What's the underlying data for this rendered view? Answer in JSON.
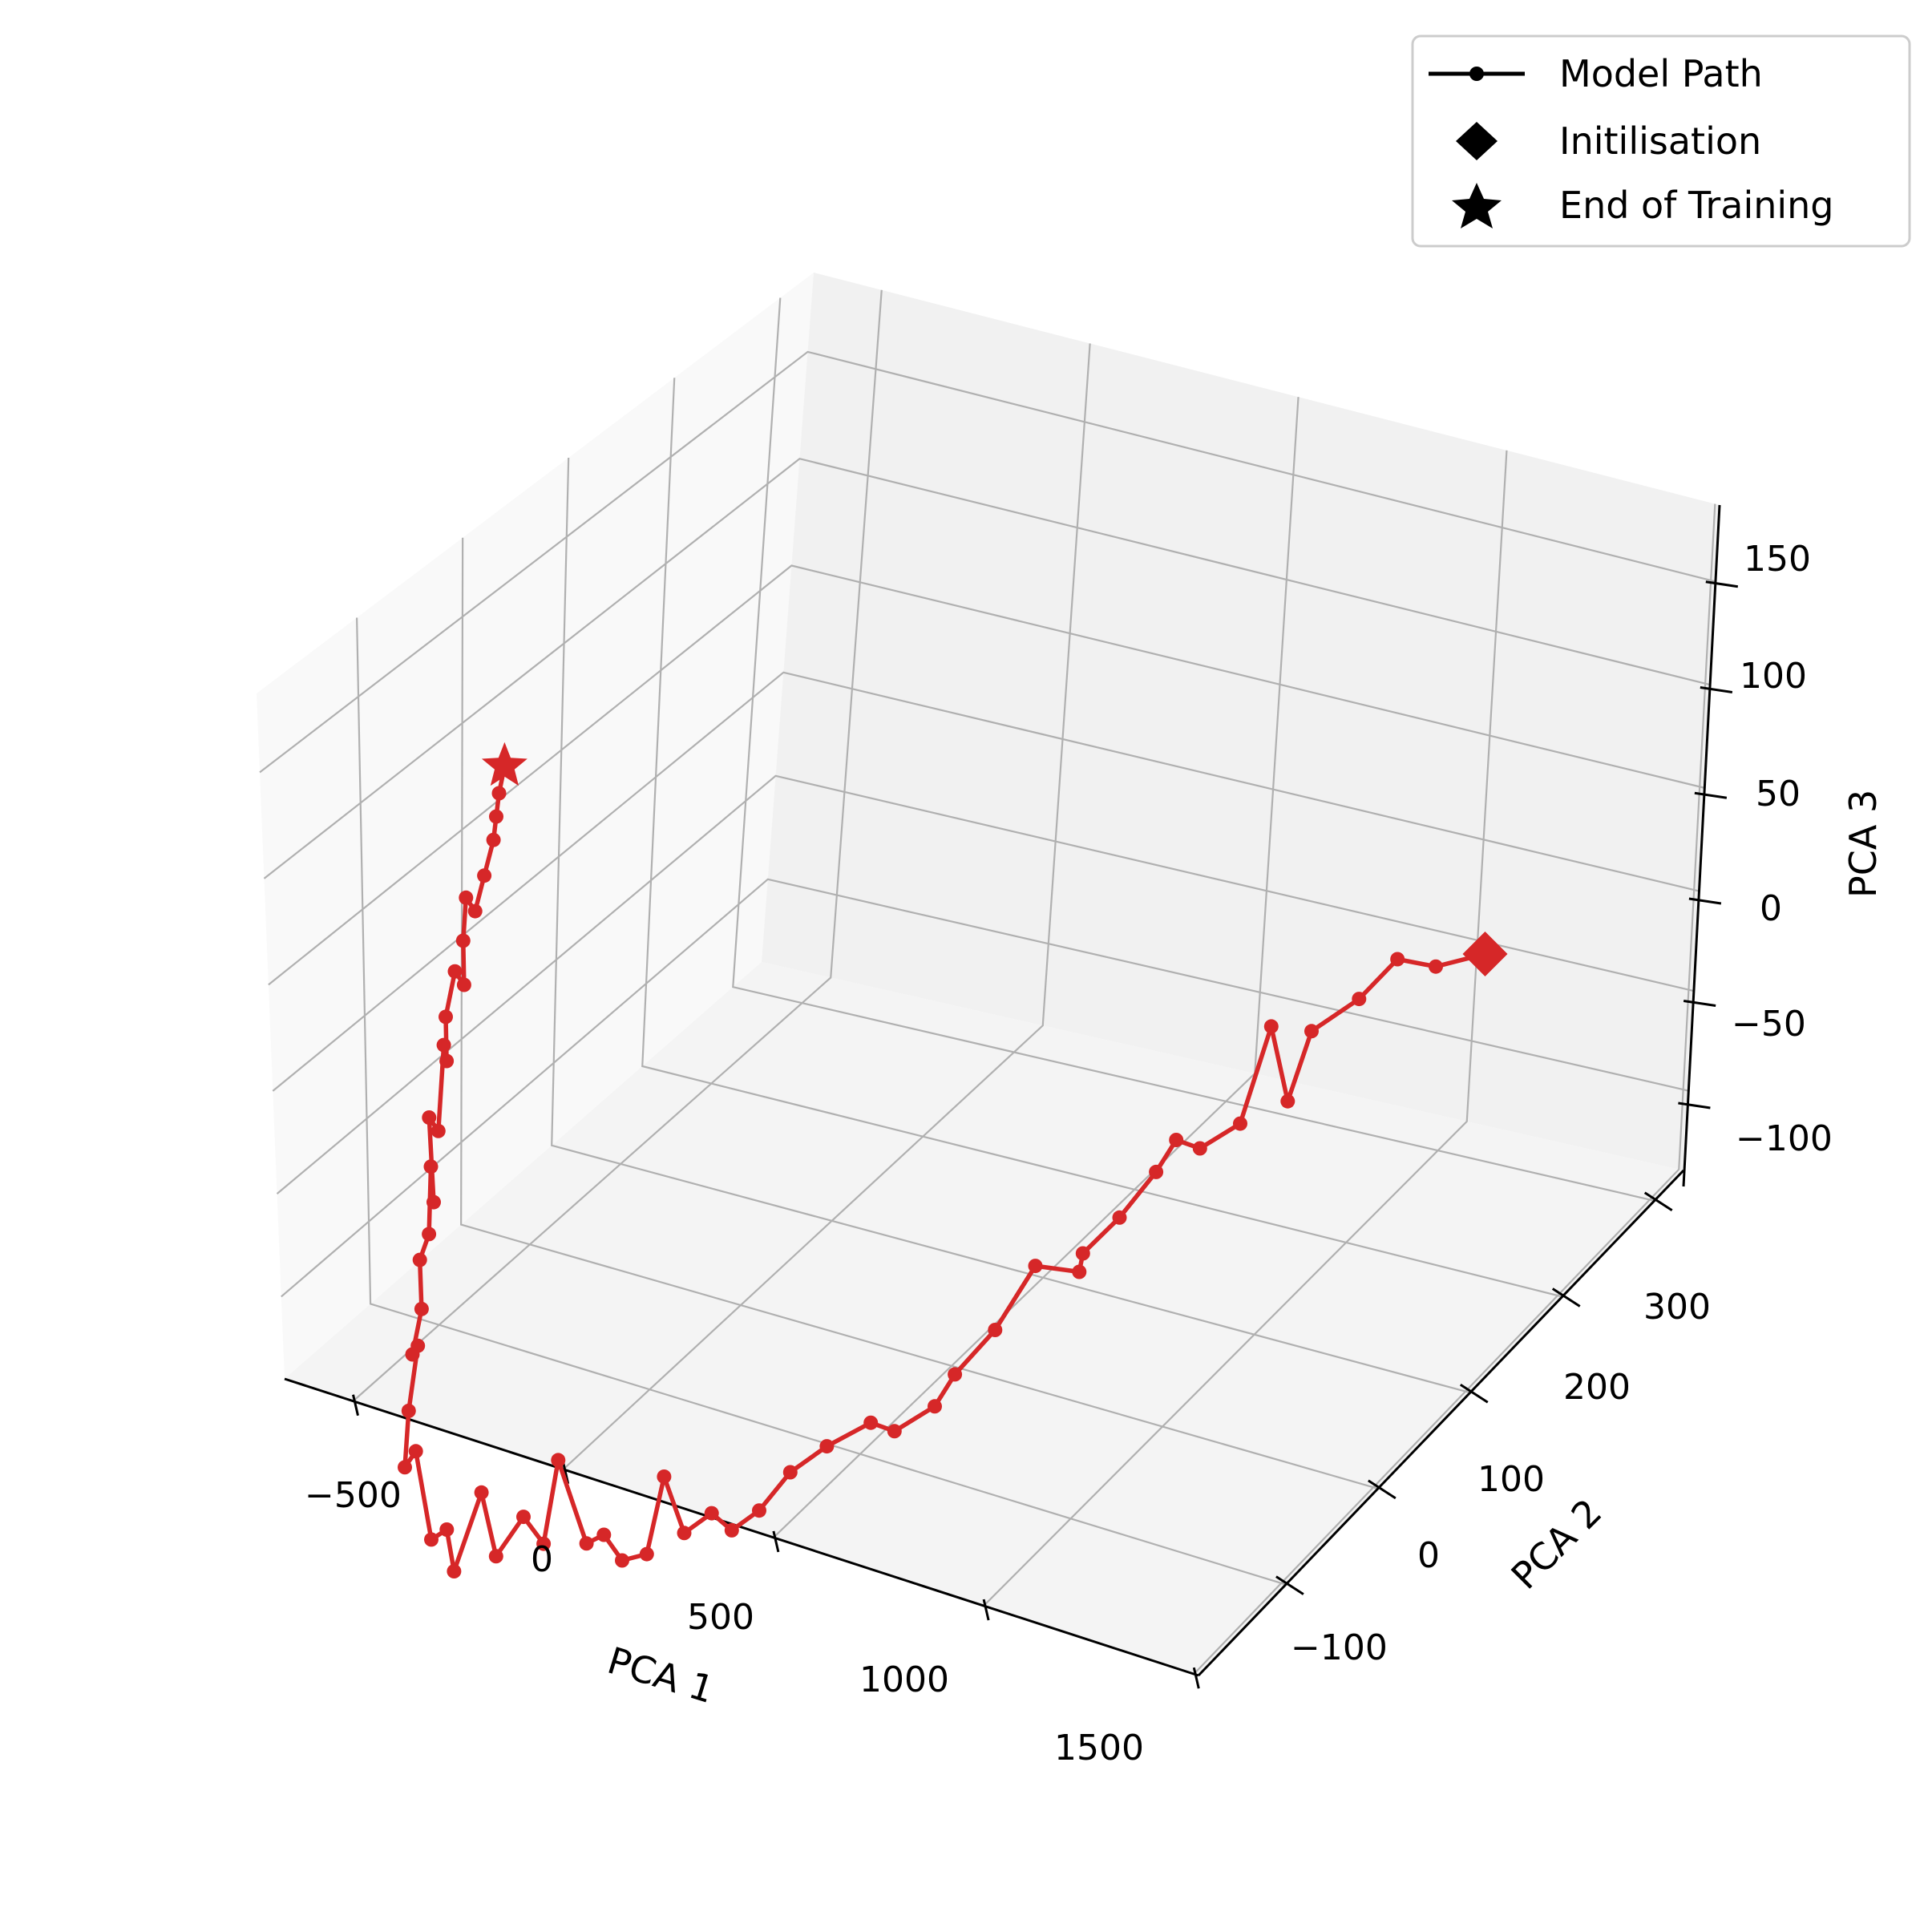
{
  "chart_data": {
    "type": "line",
    "projection": "3d",
    "title": "",
    "xlabel": "PCA 1",
    "ylabel": "PCA 2",
    "zlabel": "PCA 3",
    "x_ticks": [
      "−500",
      "0",
      "500",
      "1000",
      "1500"
    ],
    "y_ticks": [
      "−100",
      "0",
      "100",
      "200",
      "300"
    ],
    "z_ticks": [
      "−100",
      "−50",
      "0",
      "50",
      "100",
      "150"
    ],
    "grid": true,
    "legend_position": "top-right",
    "legend": [
      {
        "label": "Model Path",
        "marker": "line-dot"
      },
      {
        "label": "Initilisation",
        "marker": "diamond"
      },
      {
        "label": "End of Training",
        "marker": "star"
      }
    ],
    "series": [
      {
        "name": "Model Path",
        "color": "#d62728",
        "note_values": "approximate (x, y, z) read from projected view",
        "points": [
          [
            1500,
            300,
            120
          ],
          [
            1400,
            290,
            110
          ],
          [
            1330,
            280,
            112
          ],
          [
            1260,
            270,
            90
          ],
          [
            1200,
            250,
            75
          ],
          [
            1170,
            240,
            40
          ],
          [
            1160,
            230,
            80
          ],
          [
            1110,
            220,
            30
          ],
          [
            1070,
            200,
            20
          ],
          [
            1040,
            190,
            25
          ],
          [
            1020,
            180,
            10
          ],
          [
            990,
            160,
            -10
          ],
          [
            960,
            140,
            -25
          ],
          [
            950,
            140,
            -35
          ],
          [
            900,
            120,
            -30
          ],
          [
            860,
            100,
            -60
          ],
          [
            820,
            80,
            -80
          ],
          [
            800,
            70,
            -95
          ],
          [
            760,
            50,
            -105
          ],
          [
            730,
            40,
            -100
          ],
          [
            680,
            20,
            -110
          ],
          [
            650,
            0,
            -120
          ],
          [
            600,
            -10,
            -140
          ],
          [
            560,
            -20,
            -150
          ],
          [
            540,
            -30,
            -140
          ],
          [
            500,
            -40,
            -150
          ],
          [
            480,
            -50,
            -120
          ],
          [
            450,
            -55,
            -160
          ],
          [
            400,
            -60,
            -165
          ],
          [
            350,
            -60,
            -155
          ],
          [
            320,
            -65,
            -160
          ],
          [
            260,
            -70,
            -120
          ],
          [
            220,
            -70,
            -165
          ],
          [
            200,
            -80,
            -150
          ],
          [
            160,
            -90,
            -170
          ],
          [
            120,
            -90,
            -140
          ],
          [
            80,
            -100,
            -180
          ],
          [
            60,
            -100,
            -160
          ],
          [
            0,
            -95,
            -170
          ],
          [
            -60,
            -90,
            -130
          ],
          [
            -90,
            -90,
            -140
          ],
          [
            -150,
            -70,
            -120
          ],
          [
            -160,
            -60,
            -90
          ],
          [
            -210,
            -50,
            -100
          ],
          [
            -220,
            -40,
            -80
          ],
          [
            -260,
            -30,
            -60
          ],
          [
            -270,
            -20,
            -50
          ],
          [
            -300,
            -10,
            -20
          ],
          [
            -310,
            -5,
            -40
          ],
          [
            -340,
            0,
            0
          ],
          [
            -350,
            10,
            -10
          ],
          [
            -370,
            20,
            30
          ],
          [
            -380,
            25,
            20
          ],
          [
            -400,
            30,
            40
          ],
          [
            -410,
            40,
            60
          ],
          [
            -420,
            50,
            50
          ],
          [
            -440,
            55,
            70
          ],
          [
            -450,
            60,
            90
          ],
          [
            -460,
            70,
            80
          ],
          [
            -470,
            80,
            95
          ],
          [
            -480,
            90,
            110
          ],
          [
            -490,
            95,
            120
          ],
          [
            -500,
            100,
            130
          ],
          [
            -520,
            110,
            140
          ]
        ]
      }
    ]
  }
}
